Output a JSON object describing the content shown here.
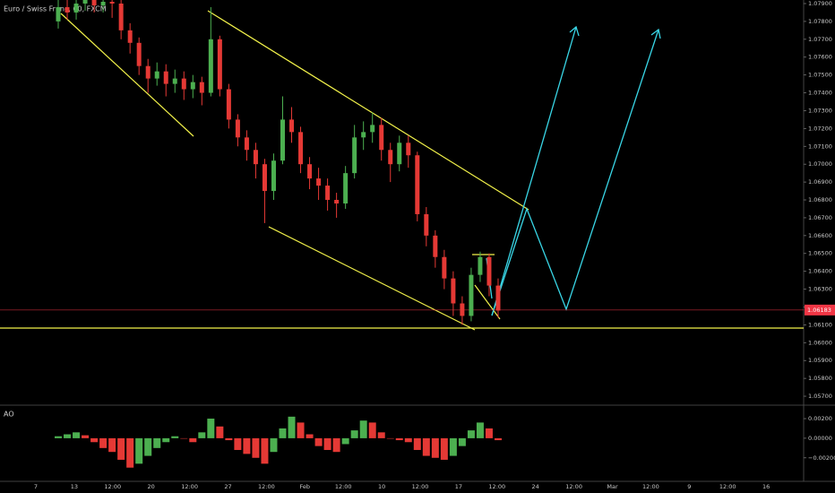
{
  "chart_data": {
    "type": "candlestick",
    "title": "Euro / Swiss Franc, 60, FXCM",
    "x_labels": [
      "7",
      "13",
      "12:00",
      "20",
      "12:00",
      "27",
      "12:00",
      "Feb",
      "12:00",
      "10",
      "12:00",
      "17",
      "12:00",
      "24",
      "12:00",
      "Mar",
      "12:00",
      "9",
      "12:00",
      "16"
    ],
    "open": [
      1.078,
      1.0788,
      1.0785,
      1.079,
      1.0792,
      1.0789,
      1.0791,
      1.079,
      1.0775,
      1.0768,
      1.0755,
      1.0748,
      1.0752,
      1.0745,
      1.0748,
      1.0742,
      1.0746,
      1.074,
      1.077,
      1.0742,
      1.0725,
      1.0715,
      1.0708,
      1.07,
      1.0685,
      1.0702,
      1.0725,
      1.0718,
      1.07,
      1.0692,
      1.0688,
      1.068,
      1.0678,
      1.0695,
      1.0715,
      1.0718,
      1.0722,
      1.0708,
      1.07,
      1.0712,
      1.0705,
      1.0672,
      1.066,
      1.0648,
      1.0636,
      1.0622,
      1.0615,
      1.0638,
      1.0648,
      1.0632
    ],
    "high": [
      1.0792,
      1.0792,
      1.0794,
      1.0796,
      1.0796,
      1.0795,
      1.0795,
      1.0792,
      1.0779,
      1.0771,
      1.0759,
      1.0757,
      1.0756,
      1.0753,
      1.0752,
      1.075,
      1.0749,
      1.0788,
      1.0772,
      1.0745,
      1.0728,
      1.0719,
      1.0712,
      1.0703,
      1.0706,
      1.0738,
      1.0732,
      1.0721,
      1.0704,
      1.0698,
      1.0692,
      1.0684,
      1.0699,
      1.0722,
      1.0724,
      1.0729,
      1.0726,
      1.0712,
      1.0716,
      1.0716,
      1.0707,
      1.0676,
      1.0663,
      1.0652,
      1.064,
      1.0626,
      1.0642,
      1.0651,
      1.065,
      1.0636
    ],
    "low": [
      1.0776,
      1.0781,
      1.0781,
      1.0786,
      1.0785,
      1.0785,
      1.0782,
      1.077,
      1.0762,
      1.075,
      1.074,
      1.0744,
      1.0738,
      1.074,
      1.0736,
      1.0737,
      1.0733,
      1.0738,
      1.0738,
      1.072,
      1.071,
      1.0702,
      1.0692,
      1.0667,
      1.068,
      1.07,
      1.0712,
      1.0695,
      1.0686,
      1.068,
      1.0674,
      1.067,
      1.0675,
      1.0692,
      1.0708,
      1.0712,
      1.0702,
      1.069,
      1.0696,
      1.0698,
      1.0668,
      1.0654,
      1.0642,
      1.063,
      1.0615,
      1.061,
      1.0612,
      1.0634,
      1.0626,
      1.0614
    ],
    "close": [
      1.0788,
      1.0785,
      1.079,
      1.0792,
      1.0789,
      1.0791,
      1.079,
      1.0775,
      1.0768,
      1.0755,
      1.0748,
      1.0752,
      1.0745,
      1.0748,
      1.0742,
      1.0746,
      1.074,
      1.077,
      1.0742,
      1.0725,
      1.0715,
      1.0708,
      1.07,
      1.0685,
      1.0702,
      1.0725,
      1.0718,
      1.07,
      1.0692,
      1.0688,
      1.068,
      1.0678,
      1.0695,
      1.0715,
      1.0718,
      1.0722,
      1.0708,
      1.07,
      1.0712,
      1.0705,
      1.0672,
      1.066,
      1.0648,
      1.0636,
      1.0622,
      1.0615,
      1.0638,
      1.0648,
      1.0632,
      1.0618
    ],
    "up_color": "#4caf50",
    "down_color": "#e53935",
    "ylim": [
      1.0565,
      1.0792
    ],
    "yticks": [
      {
        "value": 1.057,
        "label": "1.05700"
      },
      {
        "value": 1.058,
        "label": "1.05800"
      },
      {
        "value": 1.059,
        "label": "1.05900"
      },
      {
        "value": 1.06,
        "label": "1.06000"
      },
      {
        "value": 1.061,
        "label": "1.06100"
      },
      {
        "value": 1.062,
        "label": "1.06200"
      },
      {
        "value": 1.063,
        "label": "1.06300"
      },
      {
        "value": 1.064,
        "label": "1.06400"
      },
      {
        "value": 1.065,
        "label": "1.06500"
      },
      {
        "value": 1.066,
        "label": "1.06600"
      },
      {
        "value": 1.067,
        "label": "1.06700"
      },
      {
        "value": 1.068,
        "label": "1.06800"
      },
      {
        "value": 1.069,
        "label": "1.06900"
      },
      {
        "value": 1.07,
        "label": "1.07000"
      },
      {
        "value": 1.071,
        "label": "1.07100"
      },
      {
        "value": 1.072,
        "label": "1.07200"
      },
      {
        "value": 1.073,
        "label": "1.07300"
      },
      {
        "value": 1.074,
        "label": "1.07400"
      },
      {
        "value": 1.075,
        "label": "1.07500"
      },
      {
        "value": 1.076,
        "label": "1.07600"
      },
      {
        "value": 1.077,
        "label": "1.07700"
      },
      {
        "value": 1.078,
        "label": "1.07800"
      },
      {
        "value": 1.079,
        "label": "1.07900"
      }
    ],
    "last_price": {
      "value": 1.06183,
      "label": "1.06183",
      "color": "#f23645"
    },
    "indicator": {
      "type": "bar",
      "name": "AO",
      "values": [
        0.0002,
        0.0004,
        0.0006,
        0.0003,
        -0.0004,
        -0.001,
        -0.0014,
        -0.0022,
        -0.003,
        -0.0026,
        -0.0018,
        -0.001,
        -0.0004,
        0.0002,
        0.0,
        -0.0004,
        0.0006,
        0.002,
        0.0012,
        -0.0002,
        -0.0012,
        -0.0016,
        -0.002,
        -0.0026,
        -0.0014,
        0.001,
        0.0022,
        0.0016,
        0.0004,
        -0.0008,
        -0.0012,
        -0.0014,
        -0.0006,
        0.0008,
        0.0018,
        0.0016,
        0.0006,
        0.0,
        -0.0002,
        -0.0004,
        -0.0012,
        -0.0018,
        -0.002,
        -0.0022,
        -0.0018,
        -0.0008,
        0.0008,
        0.0016,
        0.001,
        -0.0002
      ],
      "up_color": "#4caf50",
      "down_color": "#e53935",
      "ylim": [
        -0.0044,
        0.0031
      ],
      "yticks": [
        {
          "value": 0.002,
          "label": "0.00200"
        },
        {
          "value": 0,
          "label": "0.00000"
        },
        {
          "value": -0.002,
          "label": "−0.00200"
        }
      ]
    }
  }
}
